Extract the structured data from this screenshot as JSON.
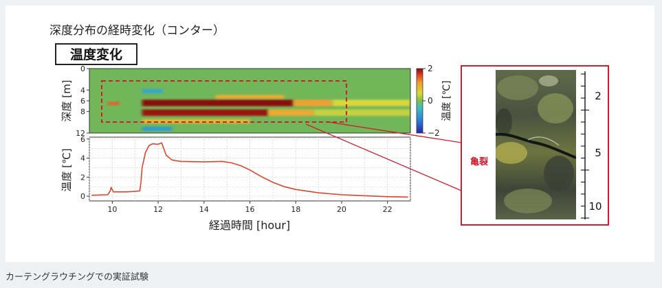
{
  "figure_heading": "深度分布の経時変化（コンター）",
  "caption": "カーテングラウチングでの実証試験",
  "colors": {
    "frame_red": "#d01c2c",
    "trace": "#e0432c",
    "crack_label": "#d01c2c"
  },
  "chart_data": [
    {
      "type": "heatmap",
      "title": "温度変化",
      "ylabel": "深度 [m]",
      "ylim": [
        0,
        12
      ],
      "y_ticks": [
        "0",
        "4",
        "6",
        "8",
        "12"
      ],
      "xlim": [
        9,
        23
      ],
      "colorbar": {
        "label": "温度 [℃]",
        "range": [
          -2,
          2
        ],
        "ticks": [
          "2",
          "0",
          "−2"
        ]
      },
      "bands": [
        {
          "x_start": 11.3,
          "x_end": 17.9,
          "depth_start": 5.8,
          "depth_end": 7.0,
          "value": 2.2
        },
        {
          "x_start": 17.9,
          "x_end": 19.6,
          "depth_start": 5.8,
          "depth_end": 7.0,
          "value": 1.0
        },
        {
          "x_start": 19.6,
          "x_end": 23,
          "depth_start": 5.8,
          "depth_end": 7.0,
          "value": 0.5
        },
        {
          "x_start": 11.3,
          "x_end": 16.8,
          "depth_start": 7.6,
          "depth_end": 8.8,
          "value": 2.1
        },
        {
          "x_start": 16.8,
          "x_end": 18.8,
          "depth_start": 7.6,
          "depth_end": 8.8,
          "value": 0.9
        },
        {
          "x_start": 18.8,
          "x_end": 23,
          "depth_start": 7.6,
          "depth_end": 8.8,
          "value": 0.4
        },
        {
          "x_start": 14.5,
          "x_end": 17.5,
          "depth_start": 4.9,
          "depth_end": 5.6,
          "value": 0.9
        },
        {
          "x_start": 11.3,
          "x_end": 16.0,
          "depth_start": 9.4,
          "depth_end": 10.2,
          "value": 0.8
        },
        {
          "x_start": 11.3,
          "x_end": 12.2,
          "depth_start": 3.8,
          "depth_end": 4.6,
          "value": -0.7
        },
        {
          "x_start": 11.3,
          "x_end": 12.6,
          "depth_start": 10.8,
          "depth_end": 11.6,
          "value": -0.8
        },
        {
          "x_start": 9.8,
          "x_end": 10.3,
          "depth_start": 6.2,
          "depth_end": 6.8,
          "value": 1.4
        }
      ]
    },
    {
      "type": "line",
      "xlabel": "経過時間 [hour]",
      "ylabel": "温度 [℃]",
      "xlim": [
        9,
        23
      ],
      "ylim": [
        -0.5,
        6.2
      ],
      "x_ticks": [
        "10",
        "12",
        "14",
        "16",
        "18",
        "20",
        "22"
      ],
      "y_ticks": [
        "0",
        "2",
        "4",
        "6"
      ],
      "grid": true,
      "x": [
        9.1,
        9.8,
        9.9,
        9.95,
        10.05,
        10.2,
        10.6,
        11.0,
        11.2,
        11.25,
        11.3,
        11.45,
        11.6,
        11.75,
        12.0,
        12.15,
        12.2,
        12.35,
        12.6,
        13.0,
        14.0,
        14.8,
        15.2,
        15.6,
        16.0,
        16.5,
        17.0,
        17.5,
        18.0,
        19.0,
        20.0,
        21.0,
        22.0,
        22.9
      ],
      "y": [
        0.1,
        0.15,
        0.5,
        0.9,
        0.45,
        0.45,
        0.45,
        0.5,
        0.55,
        1.5,
        3.0,
        4.6,
        5.3,
        5.5,
        5.45,
        5.6,
        5.3,
        4.3,
        3.8,
        3.65,
        3.6,
        3.65,
        3.5,
        3.2,
        2.75,
        2.05,
        1.45,
        1.0,
        0.7,
        0.35,
        0.15,
        0.05,
        -0.05,
        -0.1
      ]
    }
  ],
  "core_photo": {
    "label": "亀裂",
    "scale_ticks": [
      "2",
      "5",
      "10"
    ]
  }
}
